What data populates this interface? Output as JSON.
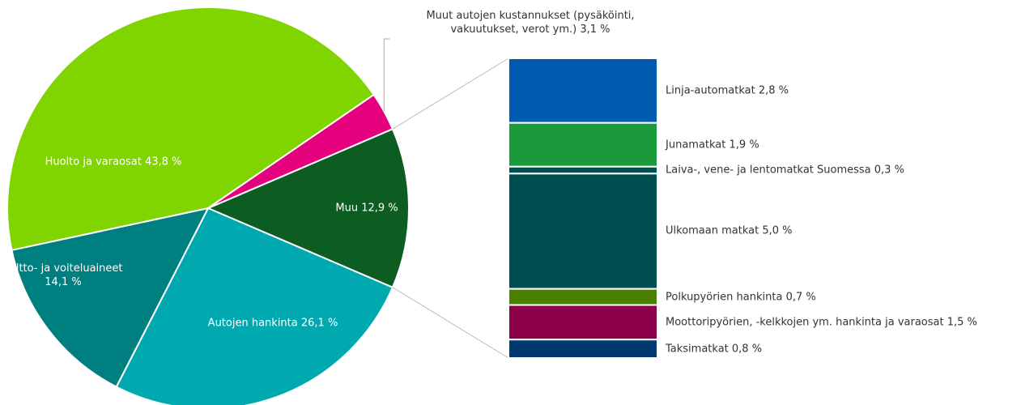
{
  "chart_data": {
    "type": "pie-of-bar",
    "slices": {
      "categories": [
        "Muu",
        "Autojen hankinta",
        "Poltto- ja voiteluaineet",
        "Huolto ja varaosat",
        "Muut autojen kustannukset (pysäköinti, vakuutukset, verot ym.)"
      ],
      "values": [
        12.9,
        26.1,
        14.1,
        43.8,
        3.1
      ],
      "value_labels": [
        "12,9 %",
        "26,1 %",
        "14,1 %",
        "43,8 %",
        "3,1 %"
      ],
      "colors": [
        "#0d5c22",
        "#00a9b0",
        "#007f80",
        "#80d400",
        "#e5007d"
      ]
    },
    "bar": {
      "categories": [
        "Linja-automatkat",
        "Junamatkat",
        "Laiva-, vene- ja lentomatkat Suomessa",
        "Ulkomaan matkat",
        "Polkupyörien hankinta",
        "Moottoripyörien, -kelkkojen ym. hankinta ja varaosat",
        "Taksimatkat"
      ],
      "values": [
        2.8,
        1.9,
        0.3,
        5.0,
        0.7,
        1.5,
        0.8
      ],
      "value_labels": [
        "2,8 %",
        "1,9 %",
        "0,3 %",
        "5,0 %",
        "0,7 %",
        "1,5 %",
        "0,8 %"
      ],
      "colors": [
        "#005bb0",
        "#1a9a3a",
        "#00504f",
        "#004f50",
        "#4a7f00",
        "#8c0049",
        "#003870"
      ]
    }
  }
}
